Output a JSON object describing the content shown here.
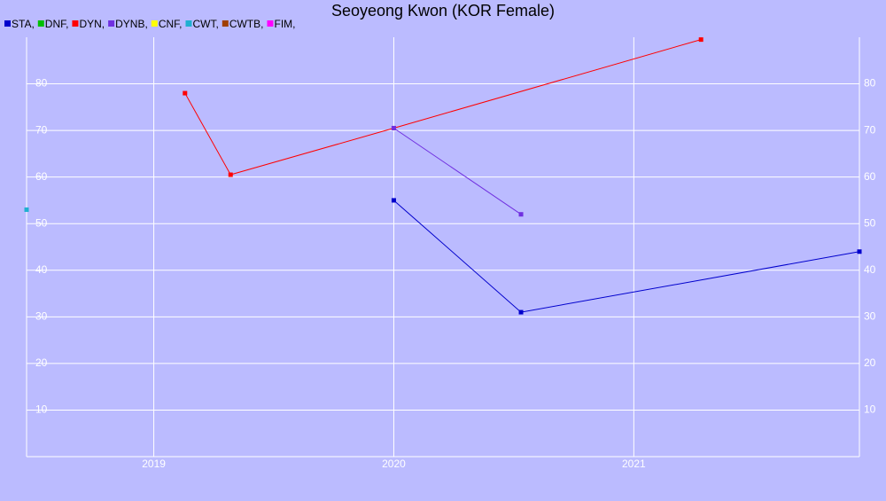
{
  "chart_data": {
    "type": "line",
    "title": "Seoyeong Kwon (KOR Female)",
    "xlim": [
      2018.47,
      2021.94
    ],
    "xticks": [
      2019,
      2020,
      2021
    ],
    "ylim": [
      0,
      90
    ],
    "yticks": [
      10,
      20,
      30,
      40,
      50,
      60,
      70,
      80
    ],
    "grid": true,
    "series": [
      {
        "name": "STA,",
        "color": "#0000cc",
        "x": [
          2020.0,
          2020.53,
          2021.94
        ],
        "values": [
          55,
          31,
          44
        ]
      },
      {
        "name": "DNF,",
        "color": "#00c000",
        "x": [],
        "values": []
      },
      {
        "name": "DYN,",
        "color": "#ff0000",
        "x": [
          2019.13,
          2019.32,
          2020.0,
          2021.28
        ],
        "values": [
          78,
          60.5,
          70.5,
          89.5
        ]
      },
      {
        "name": "DYNB,",
        "color": "#7030e0",
        "x": [
          2020.0,
          2020.53
        ],
        "values": [
          70.5,
          52
        ]
      },
      {
        "name": "CNF,",
        "color": "#ffff00",
        "x": [],
        "values": []
      },
      {
        "name": "CWT,",
        "color": "#20b0d0",
        "x": [
          2018.47
        ],
        "values": [
          53
        ]
      },
      {
        "name": "CWTB,",
        "color": "#a04000",
        "x": [],
        "values": []
      },
      {
        "name": "FIM,",
        "color": "#ff00ff",
        "x": [],
        "values": []
      }
    ]
  }
}
